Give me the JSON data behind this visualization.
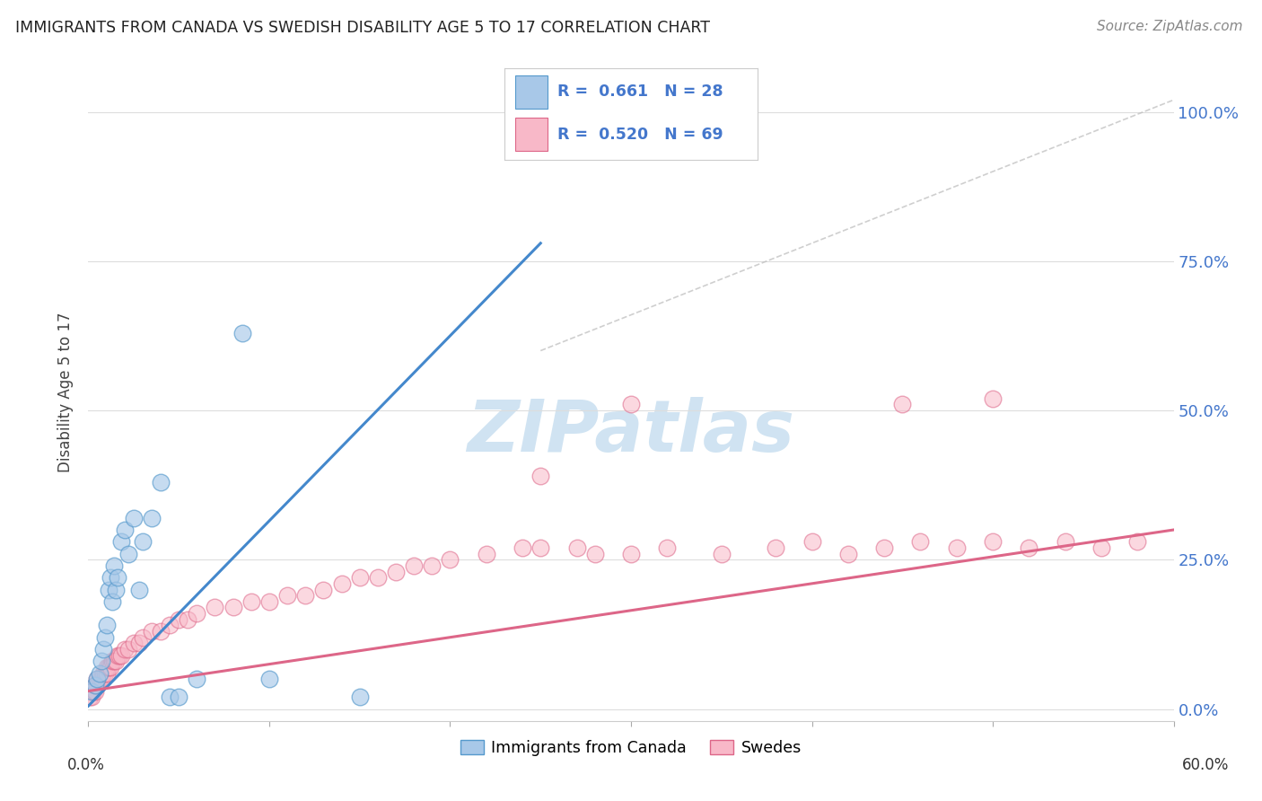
{
  "title": "IMMIGRANTS FROM CANADA VS SWEDISH DISABILITY AGE 5 TO 17 CORRELATION CHART",
  "source": "Source: ZipAtlas.com",
  "ylabel": "Disability Age 5 to 17",
  "xlim": [
    0.0,
    60.0
  ],
  "ylim": [
    -2.0,
    108.0
  ],
  "ytick_values": [
    0,
    25,
    50,
    75,
    100
  ],
  "color_blue_fill": "#a8c8e8",
  "color_blue_edge": "#5599cc",
  "color_blue_line": "#4488cc",
  "color_pink_fill": "#f8b8c8",
  "color_pink_edge": "#dd6688",
  "color_pink_line": "#dd6688",
  "color_ref_line": "#bbbbbb",
  "watermark_color": "#c8dff0",
  "blue_scatter_x": [
    0.2,
    0.4,
    0.5,
    0.6,
    0.7,
    0.8,
    0.9,
    1.0,
    1.1,
    1.2,
    1.3,
    1.4,
    1.5,
    1.6,
    1.8,
    2.0,
    2.2,
    2.5,
    2.8,
    3.0,
    3.5,
    4.0,
    4.5,
    5.0,
    6.0,
    8.5,
    10.0,
    15.0
  ],
  "blue_scatter_y": [
    3.0,
    4.0,
    5.0,
    6.0,
    8.0,
    10.0,
    12.0,
    14.0,
    20.0,
    22.0,
    18.0,
    24.0,
    20.0,
    22.0,
    28.0,
    30.0,
    26.0,
    32.0,
    20.0,
    28.0,
    32.0,
    38.0,
    2.0,
    2.0,
    5.0,
    63.0,
    5.0,
    2.0
  ],
  "pink_scatter_x": [
    0.1,
    0.2,
    0.3,
    0.4,
    0.4,
    0.5,
    0.5,
    0.6,
    0.7,
    0.8,
    0.9,
    1.0,
    1.0,
    1.1,
    1.2,
    1.3,
    1.4,
    1.5,
    1.6,
    1.7,
    1.8,
    2.0,
    2.2,
    2.5,
    2.8,
    3.0,
    3.5,
    4.0,
    4.5,
    5.0,
    5.5,
    6.0,
    7.0,
    8.0,
    9.0,
    10.0,
    11.0,
    12.0,
    13.0,
    14.0,
    15.0,
    16.0,
    17.0,
    18.0,
    19.0,
    20.0,
    22.0,
    24.0,
    25.0,
    27.0,
    28.0,
    30.0,
    32.0,
    35.0,
    38.0,
    40.0,
    42.0,
    44.0,
    46.0,
    48.0,
    50.0,
    52.0,
    54.0,
    56.0,
    58.0,
    25.0,
    30.0,
    45.0,
    50.0
  ],
  "pink_scatter_y": [
    2.0,
    2.0,
    3.0,
    3.0,
    4.0,
    4.0,
    5.0,
    5.0,
    5.0,
    6.0,
    6.0,
    6.0,
    7.0,
    7.0,
    7.0,
    8.0,
    8.0,
    8.0,
    9.0,
    9.0,
    9.0,
    10.0,
    10.0,
    11.0,
    11.0,
    12.0,
    13.0,
    13.0,
    14.0,
    15.0,
    15.0,
    16.0,
    17.0,
    17.0,
    18.0,
    18.0,
    19.0,
    19.0,
    20.0,
    21.0,
    22.0,
    22.0,
    23.0,
    24.0,
    24.0,
    25.0,
    26.0,
    27.0,
    27.0,
    27.0,
    26.0,
    26.0,
    27.0,
    26.0,
    27.0,
    28.0,
    26.0,
    27.0,
    28.0,
    27.0,
    28.0,
    27.0,
    28.0,
    27.0,
    28.0,
    39.0,
    51.0,
    51.0,
    52.0
  ],
  "blue_line_x0": 0.0,
  "blue_line_y0": 0.5,
  "blue_line_x1": 25.0,
  "blue_line_y1": 78.0,
  "pink_line_x0": 0.0,
  "pink_line_y0": 3.0,
  "pink_line_x1": 60.0,
  "pink_line_y1": 30.0,
  "ref_line_x0": 25.0,
  "ref_line_y0": 60.0,
  "ref_line_x1": 60.0,
  "ref_line_y1": 102.0,
  "legend_r1_text": "R =  0.661   N = 28",
  "legend_r2_text": "R =  0.520   N = 69"
}
